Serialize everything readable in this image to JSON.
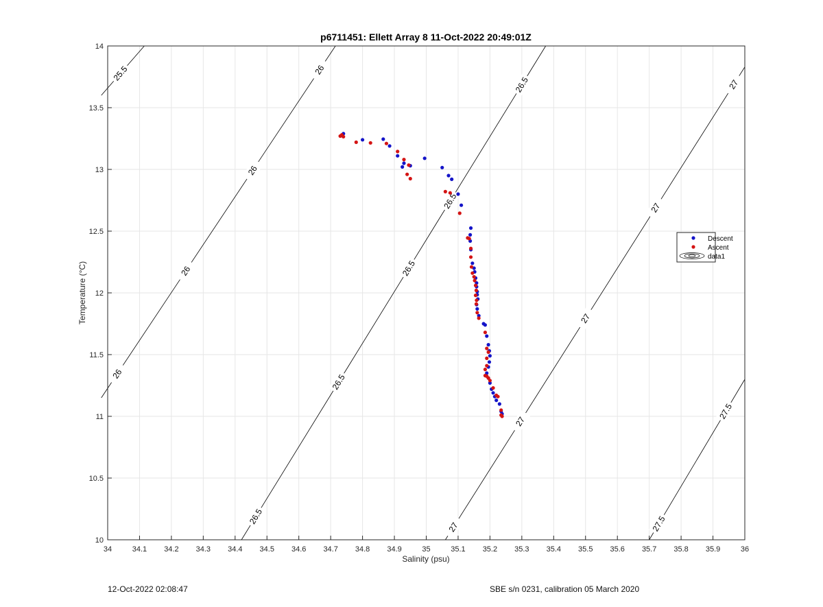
{
  "chart_data": {
    "type": "scatter",
    "title": "p6711451: Ellett Array 8 11-Oct-2022 20:49:01Z",
    "xlabel": "Salinity (psu)",
    "ylabel": "Temperature (°C)",
    "xlim": [
      34,
      36
    ],
    "ylim": [
      10,
      14
    ],
    "xticks": [
      "34",
      "34.1",
      "34.2",
      "34.3",
      "34.4",
      "34.5",
      "34.6",
      "34.7",
      "34.8",
      "34.9",
      "35",
      "35.1",
      "35.2",
      "35.3",
      "35.4",
      "35.5",
      "35.6",
      "35.7",
      "35.8",
      "35.9",
      "36"
    ],
    "yticks": [
      "10",
      "10.5",
      "11",
      "11.5",
      "12",
      "12.5",
      "13",
      "13.5",
      "14"
    ],
    "grid": true,
    "legend_position": "right",
    "colors": {
      "descent": "#1414c8",
      "ascent": "#d41414",
      "contour": "#000000",
      "grid": "#e6e6e6"
    },
    "series": [
      {
        "name": "Descent",
        "color": "#1414c8",
        "x": [
          34.74,
          34.735,
          34.8,
          34.865,
          34.885,
          34.91,
          34.925,
          34.95,
          34.93,
          34.995,
          35.05,
          35.07,
          35.08,
          35.1,
          35.11,
          35.14,
          35.138,
          35.138,
          35.14,
          35.145,
          35.15,
          35.152,
          35.155,
          35.158,
          35.158,
          35.16,
          35.16,
          35.162,
          35.158,
          35.16,
          35.165,
          35.18,
          35.185,
          35.19,
          35.195,
          35.198,
          35.2,
          35.198,
          35.195,
          35.19,
          35.195,
          35.2,
          35.205,
          35.21,
          35.215,
          35.22,
          35.23,
          35.235,
          35.238
        ],
        "y": [
          13.29,
          13.275,
          13.24,
          13.245,
          13.19,
          13.11,
          13.02,
          13.03,
          13.05,
          13.09,
          13.015,
          12.95,
          12.92,
          12.8,
          12.71,
          12.525,
          12.47,
          12.42,
          12.35,
          12.24,
          12.2,
          12.17,
          12.12,
          12.08,
          12.05,
          12.01,
          11.985,
          11.95,
          11.905,
          11.87,
          11.815,
          11.75,
          11.74,
          11.65,
          11.58,
          11.53,
          11.49,
          11.44,
          11.4,
          11.35,
          11.31,
          11.27,
          11.22,
          11.19,
          11.16,
          11.13,
          11.1,
          11.04,
          11.02
        ]
      },
      {
        "name": "Ascent",
        "color": "#d41414",
        "x": [
          34.735,
          34.73,
          34.74,
          34.78,
          34.825,
          34.875,
          34.91,
          34.93,
          34.945,
          34.94,
          34.95,
          35.06,
          35.075,
          35.105,
          35.13,
          35.135,
          35.14,
          35.14,
          35.142,
          35.145,
          35.15,
          35.152,
          35.155,
          35.157,
          35.155,
          35.158,
          35.157,
          35.16,
          35.165,
          35.185,
          35.19,
          35.195,
          35.19,
          35.19,
          35.185,
          35.185,
          35.19,
          35.195,
          35.2,
          35.21,
          35.22,
          35.225,
          35.235,
          35.235,
          35.238
        ],
        "y": [
          13.28,
          13.27,
          13.265,
          13.22,
          13.215,
          13.21,
          13.145,
          13.08,
          13.035,
          12.96,
          12.925,
          12.82,
          12.81,
          12.645,
          12.445,
          12.44,
          12.36,
          12.29,
          12.21,
          12.16,
          12.13,
          12.1,
          12.06,
          12.02,
          11.98,
          11.94,
          11.91,
          11.84,
          11.795,
          11.68,
          11.55,
          11.52,
          11.47,
          11.41,
          11.38,
          11.33,
          11.325,
          11.31,
          11.29,
          11.23,
          11.17,
          11.16,
          11.05,
          11.01,
          11.0
        ]
      }
    ],
    "legend": [
      "Descent",
      "Ascent",
      "data1"
    ],
    "contours": [
      {
        "sigma": 25.5,
        "x0": 33.98,
        "x1": 34.115,
        "ylow": 13.6,
        "yhigh": 14.0,
        "labels": [
          {
            "text": "25.5",
            "x": 34.04
          }
        ]
      },
      {
        "sigma": 26.0,
        "x0": 33.98,
        "x1": 34.715,
        "ylow": 11.15,
        "yhigh": 14.0,
        "labels": [
          {
            "text": "26",
            "x": 34.03
          },
          {
            "text": "26",
            "x": 34.245
          },
          {
            "text": "26",
            "x": 34.455
          },
          {
            "text": "26",
            "x": 34.665
          }
        ]
      },
      {
        "sigma": 26.5,
        "x0": 34.42,
        "x1": 35.375,
        "ylow": 10.0,
        "yhigh": 14.0,
        "labels": [
          {
            "text": "26.5",
            "x": 34.465
          },
          {
            "text": "26.5",
            "x": 34.725
          },
          {
            "text": "26.5",
            "x": 34.945
          },
          {
            "text": "26.5",
            "x": 35.075
          },
          {
            "text": "26.5",
            "x": 35.3
          }
        ]
      },
      {
        "sigma": 27.0,
        "x0": 35.06,
        "x1": 36.0,
        "ylow": 10.0,
        "yhigh": 13.83,
        "labels": [
          {
            "text": "27",
            "x": 35.085
          },
          {
            "text": "27",
            "x": 35.295
          },
          {
            "text": "27",
            "x": 35.5
          },
          {
            "text": "27",
            "x": 35.72
          },
          {
            "text": "27",
            "x": 35.965
          }
        ]
      },
      {
        "sigma": 27.5,
        "x0": 35.7,
        "x1": 36.0,
        "ylow": 10.0,
        "yhigh": 11.3,
        "labels": [
          {
            "text": "27.5",
            "x": 35.73
          },
          {
            "text": "27.5",
            "x": 35.94
          }
        ]
      }
    ]
  },
  "footer": {
    "timestamp": "12-Oct-2022 02:08:47",
    "calibration": "SBE s/n 0231, calibration 05 March 2020"
  }
}
